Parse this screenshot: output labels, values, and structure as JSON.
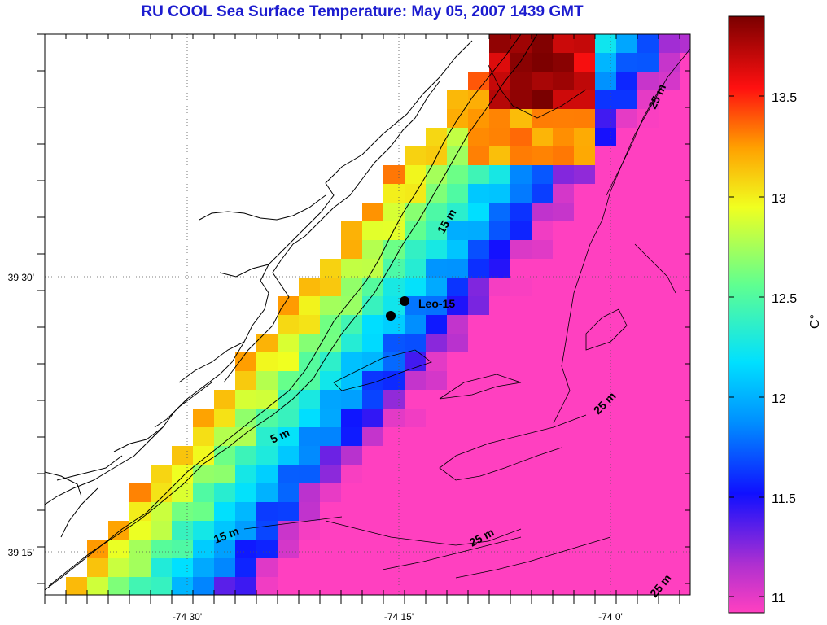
{
  "title": "RU COOL  Sea Surface Temperature:  May 05, 2007 1439 GMT",
  "map": {
    "lon_ticks": [
      "-74 30'",
      "-74 15'",
      "-74 0'"
    ],
    "lat_ticks": [
      "39 30'",
      "39 15'"
    ],
    "station": "Leo-15",
    "contours": [
      "5 m",
      "15 m",
      "15 m",
      "25 m",
      "25 m",
      "25 m",
      "25 m"
    ]
  },
  "colorbar": {
    "unit": "C°",
    "ticks": [
      "13.5",
      "13",
      "12.5",
      "12",
      "11.5",
      "11"
    ],
    "range": [
      10.9,
      13.9
    ],
    "colors": [
      "#ff40c0",
      "#9030d0",
      "#0000ff",
      "#00d0ff",
      "#80ff80",
      "#ffff00",
      "#ff8000",
      "#ff0000",
      "#800000"
    ]
  },
  "colors": {
    "title": "#1c1ccf"
  }
}
